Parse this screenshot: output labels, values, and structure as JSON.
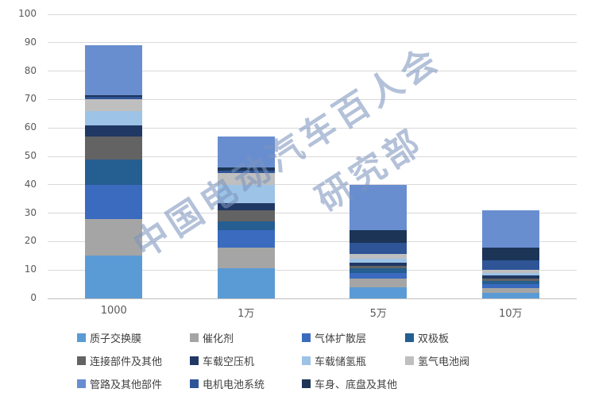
{
  "chart_data": {
    "type": "bar",
    "stacked": true,
    "title": "",
    "xlabel": "",
    "ylabel": "",
    "ylim": [
      0,
      100
    ],
    "y_ticks": [
      0,
      10,
      20,
      30,
      40,
      50,
      60,
      70,
      80,
      90,
      100
    ],
    "grid": true,
    "legend_position": "bottom",
    "categories": [
      "1000",
      "1万",
      "5万",
      "10万"
    ],
    "series_colors": {
      "质子交换膜": "#5B9BD5",
      "催化剂": "#A5A5A5",
      "气体扩散层": "#3A6BBF",
      "双极板": "#255E91",
      "连接部件及其他": "#636363",
      "车载空压机": "#203864",
      "车载储氢瓶": "#9DC3E6",
      "氢气电池阀": "#BFBFBF",
      "管路及其他部件": "#698ED0",
      "电机电池系统": "#2F5597",
      "车身、底盘及其他": "#1C3557"
    },
    "legend_order": [
      "质子交换膜",
      "催化剂",
      "气体扩散层",
      "双极板",
      "连接部件及其他",
      "车载空压机",
      "车载储氢瓶",
      "氢气电池阀",
      "管路及其他部件",
      "电机电池系统",
      "车身、底盘及其他"
    ],
    "bars": [
      {
        "category": "1000",
        "total": 89,
        "segments_bottom_to_top": [
          {
            "name": "质子交换膜",
            "value": 15
          },
          {
            "name": "催化剂",
            "value": 13
          },
          {
            "name": "气体扩散层",
            "value": 12
          },
          {
            "name": "双极板",
            "value": 9
          },
          {
            "name": "连接部件及其他",
            "value": 8
          },
          {
            "name": "车载空压机",
            "value": 4
          },
          {
            "name": "车载储氢瓶",
            "value": 5
          },
          {
            "name": "氢气电池阀",
            "value": 4
          },
          {
            "name": "电机电池系统",
            "value": 1
          },
          {
            "name": "车身、底盘及其他",
            "value": 0.5
          },
          {
            "name": "管路及其他部件",
            "value": 17.5
          }
        ]
      },
      {
        "category": "1万",
        "total": 57,
        "segments_bottom_to_top": [
          {
            "name": "质子交换膜",
            "value": 10.5
          },
          {
            "name": "催化剂",
            "value": 7.5
          },
          {
            "name": "气体扩散层",
            "value": 6
          },
          {
            "name": "双极板",
            "value": 3
          },
          {
            "name": "连接部件及其他",
            "value": 4
          },
          {
            "name": "车载空压机",
            "value": 2.5
          },
          {
            "name": "车载储氢瓶",
            "value": 6.5
          },
          {
            "name": "氢气电池阀",
            "value": 4
          },
          {
            "name": "电机电池系统",
            "value": 1
          },
          {
            "name": "车身、底盘及其他",
            "value": 1
          },
          {
            "name": "管路及其他部件",
            "value": 11
          }
        ]
      },
      {
        "category": "5万",
        "total": 40,
        "segments_bottom_to_top": [
          {
            "name": "质子交换膜",
            "value": 4
          },
          {
            "name": "催化剂",
            "value": 3
          },
          {
            "name": "气体扩散层",
            "value": 2
          },
          {
            "name": "双极板",
            "value": 1.5
          },
          {
            "name": "连接部件及其他",
            "value": 1
          },
          {
            "name": "车载空压机",
            "value": 1
          },
          {
            "name": "车载储氢瓶",
            "value": 1.5
          },
          {
            "name": "氢气电池阀",
            "value": 1.5
          },
          {
            "name": "电机电池系统",
            "value": 4
          },
          {
            "name": "车身、底盘及其他",
            "value": 4.5
          },
          {
            "name": "管路及其他部件",
            "value": 16
          }
        ]
      },
      {
        "category": "10万",
        "total": 31,
        "segments_bottom_to_top": [
          {
            "name": "质子交换膜",
            "value": 2
          },
          {
            "name": "催化剂",
            "value": 1.5
          },
          {
            "name": "气体扩散层",
            "value": 1.5
          },
          {
            "name": "双极板",
            "value": 1
          },
          {
            "name": "连接部件及其他",
            "value": 1
          },
          {
            "name": "车载空压机",
            "value": 1
          },
          {
            "name": "车载储氢瓶",
            "value": 1
          },
          {
            "name": "氢气电池阀",
            "value": 1
          },
          {
            "name": "电机电池系统",
            "value": 3.5
          },
          {
            "name": "车身、底盘及其他",
            "value": 4.5
          },
          {
            "name": "管路及其他部件",
            "value": 13
          }
        ]
      }
    ],
    "watermark": {
      "line1": "中国电动汽车百人会",
      "line2": "研究部"
    }
  }
}
